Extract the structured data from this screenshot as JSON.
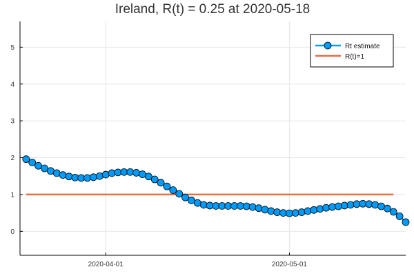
{
  "chart_data": {
    "type": "line",
    "title": "Ireland, R(t) = 0.25 at 2020-05-18",
    "xlabel": "",
    "ylabel": "",
    "x_start": "2020-03-19",
    "x_end": "2020-05-18",
    "xlim": [
      "2020-03-18",
      "2020-05-20"
    ],
    "ylim": [
      -0.65,
      5.7
    ],
    "x_ticks": [
      {
        "date": "2020-04-01",
        "label": "2020-04-01"
      },
      {
        "date": "2020-05-01",
        "label": "2020-05-01"
      }
    ],
    "y_ticks": [
      0,
      1,
      2,
      3,
      4,
      5
    ],
    "y_tick_labels": [
      "0",
      "1",
      "2",
      "3",
      "4",
      "5"
    ],
    "grid": true,
    "legend_position": "top-right",
    "series": [
      {
        "name": "Rt estimate",
        "color": "#009af9",
        "marker": "circle",
        "values": [
          1.96,
          1.87,
          1.78,
          1.71,
          1.64,
          1.58,
          1.53,
          1.49,
          1.46,
          1.45,
          1.45,
          1.47,
          1.5,
          1.54,
          1.58,
          1.6,
          1.61,
          1.61,
          1.59,
          1.55,
          1.49,
          1.41,
          1.32,
          1.22,
          1.12,
          1.02,
          0.92,
          0.84,
          0.77,
          0.72,
          0.7,
          0.69,
          0.69,
          0.69,
          0.69,
          0.69,
          0.68,
          0.66,
          0.63,
          0.59,
          0.55,
          0.52,
          0.5,
          0.49,
          0.5,
          0.52,
          0.55,
          0.58,
          0.61,
          0.64,
          0.66,
          0.68,
          0.7,
          0.72,
          0.74,
          0.75,
          0.74,
          0.72,
          0.68,
          0.62,
          0.53,
          0.41,
          0.25
        ]
      },
      {
        "name": "R(t)=1",
        "color": "#e26f46",
        "marker": "none",
        "values": [
          1,
          1
        ]
      }
    ]
  }
}
